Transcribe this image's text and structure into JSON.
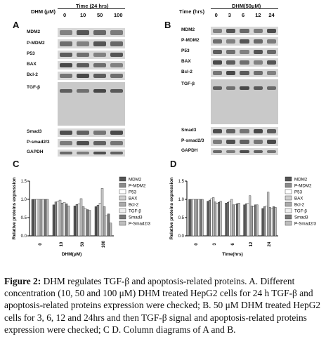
{
  "panel_A": {
    "letter": "A",
    "header_label": "DHM (μM)",
    "header_group": "Time (24 hrs)",
    "lanes": [
      "0",
      "10",
      "50",
      "100"
    ],
    "rows": [
      "MDM2",
      "P-MDM2",
      "P53",
      "BAX",
      "Bcl-2",
      "TGF-β",
      "Smad3",
      "P-smad2/3",
      "GAPDH"
    ]
  },
  "panel_B": {
    "letter": "B",
    "header_label": "Time (hrs)",
    "header_group": "DHM(50μM)",
    "lanes": [
      "0",
      "3",
      "6",
      "12",
      "24"
    ],
    "rows": [
      "MDM2",
      "P-MDM2",
      "P53",
      "BAX",
      "Bcl-2",
      "TGF-β",
      "Smad3",
      "P-smad2/3",
      "GAPDH"
    ]
  },
  "chart_data": [
    {
      "panel": "C",
      "type": "bar",
      "ylabel": "Relative proteins expression",
      "xlabel": "DHM(μM)",
      "categories": [
        "0",
        "10",
        "50",
        "100"
      ],
      "ylim": [
        0,
        1.5
      ],
      "yticks": [
        "0.0",
        "0.5",
        "1.0",
        "1.5"
      ],
      "legend_position": "right",
      "series": [
        {
          "name": "MDM2",
          "values": [
            1.0,
            0.85,
            0.82,
            0.8
          ]
        },
        {
          "name": "P-MDM2",
          "values": [
            1.0,
            0.93,
            0.86,
            0.84
          ]
        },
        {
          "name": "P53",
          "values": [
            1.0,
            0.95,
            0.88,
            0.9
          ]
        },
        {
          "name": "BAX",
          "values": [
            1.0,
            0.98,
            1.02,
            1.3
          ]
        },
        {
          "name": "Bcl-2",
          "values": [
            1.0,
            0.9,
            0.8,
            0.8
          ]
        },
        {
          "name": "TGF-β",
          "values": [
            1.0,
            0.92,
            0.75,
            0.55
          ]
        },
        {
          "name": "Smad3",
          "values": [
            1.0,
            0.88,
            0.72,
            0.6
          ]
        },
        {
          "name": "P-Smad2/3",
          "values": [
            1.0,
            0.82,
            0.7,
            0.35
          ]
        }
      ]
    },
    {
      "panel": "D",
      "type": "bar",
      "ylabel": "Relative proteins expression",
      "xlabel": "Time(hrs)",
      "categories": [
        "0",
        "3",
        "6",
        "12",
        "24"
      ],
      "ylim": [
        0,
        1.5
      ],
      "yticks": [
        "0.0",
        "0.5",
        "1.0",
        "1.5"
      ],
      "legend_position": "right",
      "series": [
        {
          "name": "MDM2",
          "values": [
            1.0,
            0.95,
            0.9,
            0.85,
            0.75
          ]
        },
        {
          "name": "P-MDM2",
          "values": [
            1.0,
            0.98,
            0.92,
            0.88,
            0.8
          ]
        },
        {
          "name": "P53",
          "values": [
            1.0,
            1.02,
            0.95,
            0.9,
            0.82
          ]
        },
        {
          "name": "BAX",
          "values": [
            1.0,
            1.05,
            1.0,
            1.1,
            1.2
          ]
        },
        {
          "name": "Bcl-2",
          "values": [
            1.0,
            0.93,
            0.85,
            0.82,
            0.78
          ]
        },
        {
          "name": "TGF-β",
          "values": [
            1.0,
            0.9,
            0.85,
            0.8,
            0.75
          ]
        },
        {
          "name": "Smad3",
          "values": [
            1.0,
            0.92,
            0.88,
            0.85,
            0.8
          ]
        },
        {
          "name": "P-Smad2/3",
          "values": [
            1.0,
            0.95,
            0.9,
            0.85,
            0.78
          ]
        }
      ]
    }
  ],
  "caption": {
    "label": "Figure 2:",
    "text": "DHM regulates TGF-β and apoptosis-related proteins. A. Different concentration (10, 50 and 100 μM) DHM treated HepG2 cells for 24 h TGF-β and apoptosis-related proteins expression were checked; B. 50 μM DHM treated HepG2 cells for 3, 6, 12 and 24hrs and then TGF-β signal and apoptosis-related proteins expression were checked; C D. Column diagrams of A and B."
  }
}
